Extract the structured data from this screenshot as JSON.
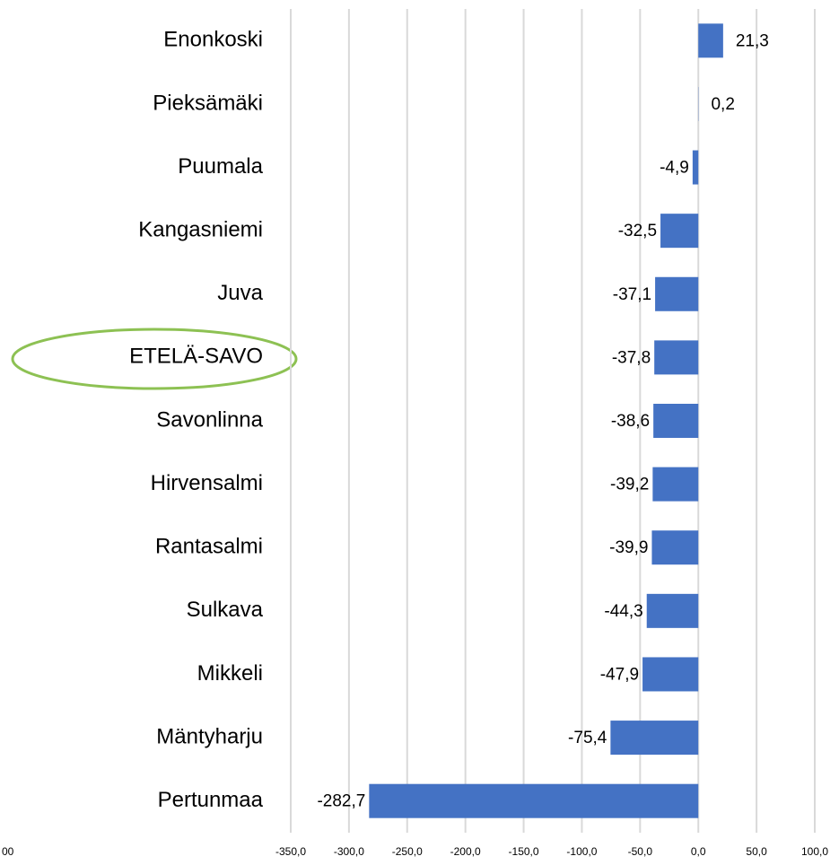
{
  "chart_data": {
    "type": "hbar",
    "categories": [
      "Enonkoski",
      "Pieksämäki",
      "Puumala",
      "Kangasniemi",
      "Juva",
      "ETELÄ-SAVO",
      "Savonlinna",
      "Hirvensalmi",
      "Rantasalmi",
      "Sulkava",
      "Mikkeli",
      "Mäntyharju",
      "Pertunmaa"
    ],
    "values": [
      21.3,
      0.2,
      -4.9,
      -32.5,
      -37.1,
      -37.8,
      -38.6,
      -39.2,
      -39.9,
      -44.3,
      -47.9,
      -75.4,
      -282.7
    ],
    "value_labels": [
      "21,3",
      "0,2",
      "-4,9",
      "-32,5",
      "-37,1",
      "-37,8",
      "-38,6",
      "-39,2",
      "-39,9",
      "-44,3",
      "-47,9",
      "-75,4",
      "-282,7"
    ],
    "color": "#4472c4",
    "xlim": [
      -350,
      100
    ],
    "xticks": [
      {
        "value": -350,
        "label": "-350,0"
      },
      {
        "value": -300,
        "label": "-300,0"
      },
      {
        "value": -250,
        "label": "-250,0"
      },
      {
        "value": -200,
        "label": "-200,0"
      },
      {
        "value": -150,
        "label": "-150,0"
      },
      {
        "value": -100,
        "label": "-100,0"
      },
      {
        "value": -50,
        "label": "-50,0"
      },
      {
        "value": 0,
        "label": "0,0"
      },
      {
        "value": 50,
        "label": "50,0"
      },
      {
        "value": 100,
        "label": "100,0"
      }
    ],
    "grid": true,
    "annotations": [
      "00"
    ]
  }
}
